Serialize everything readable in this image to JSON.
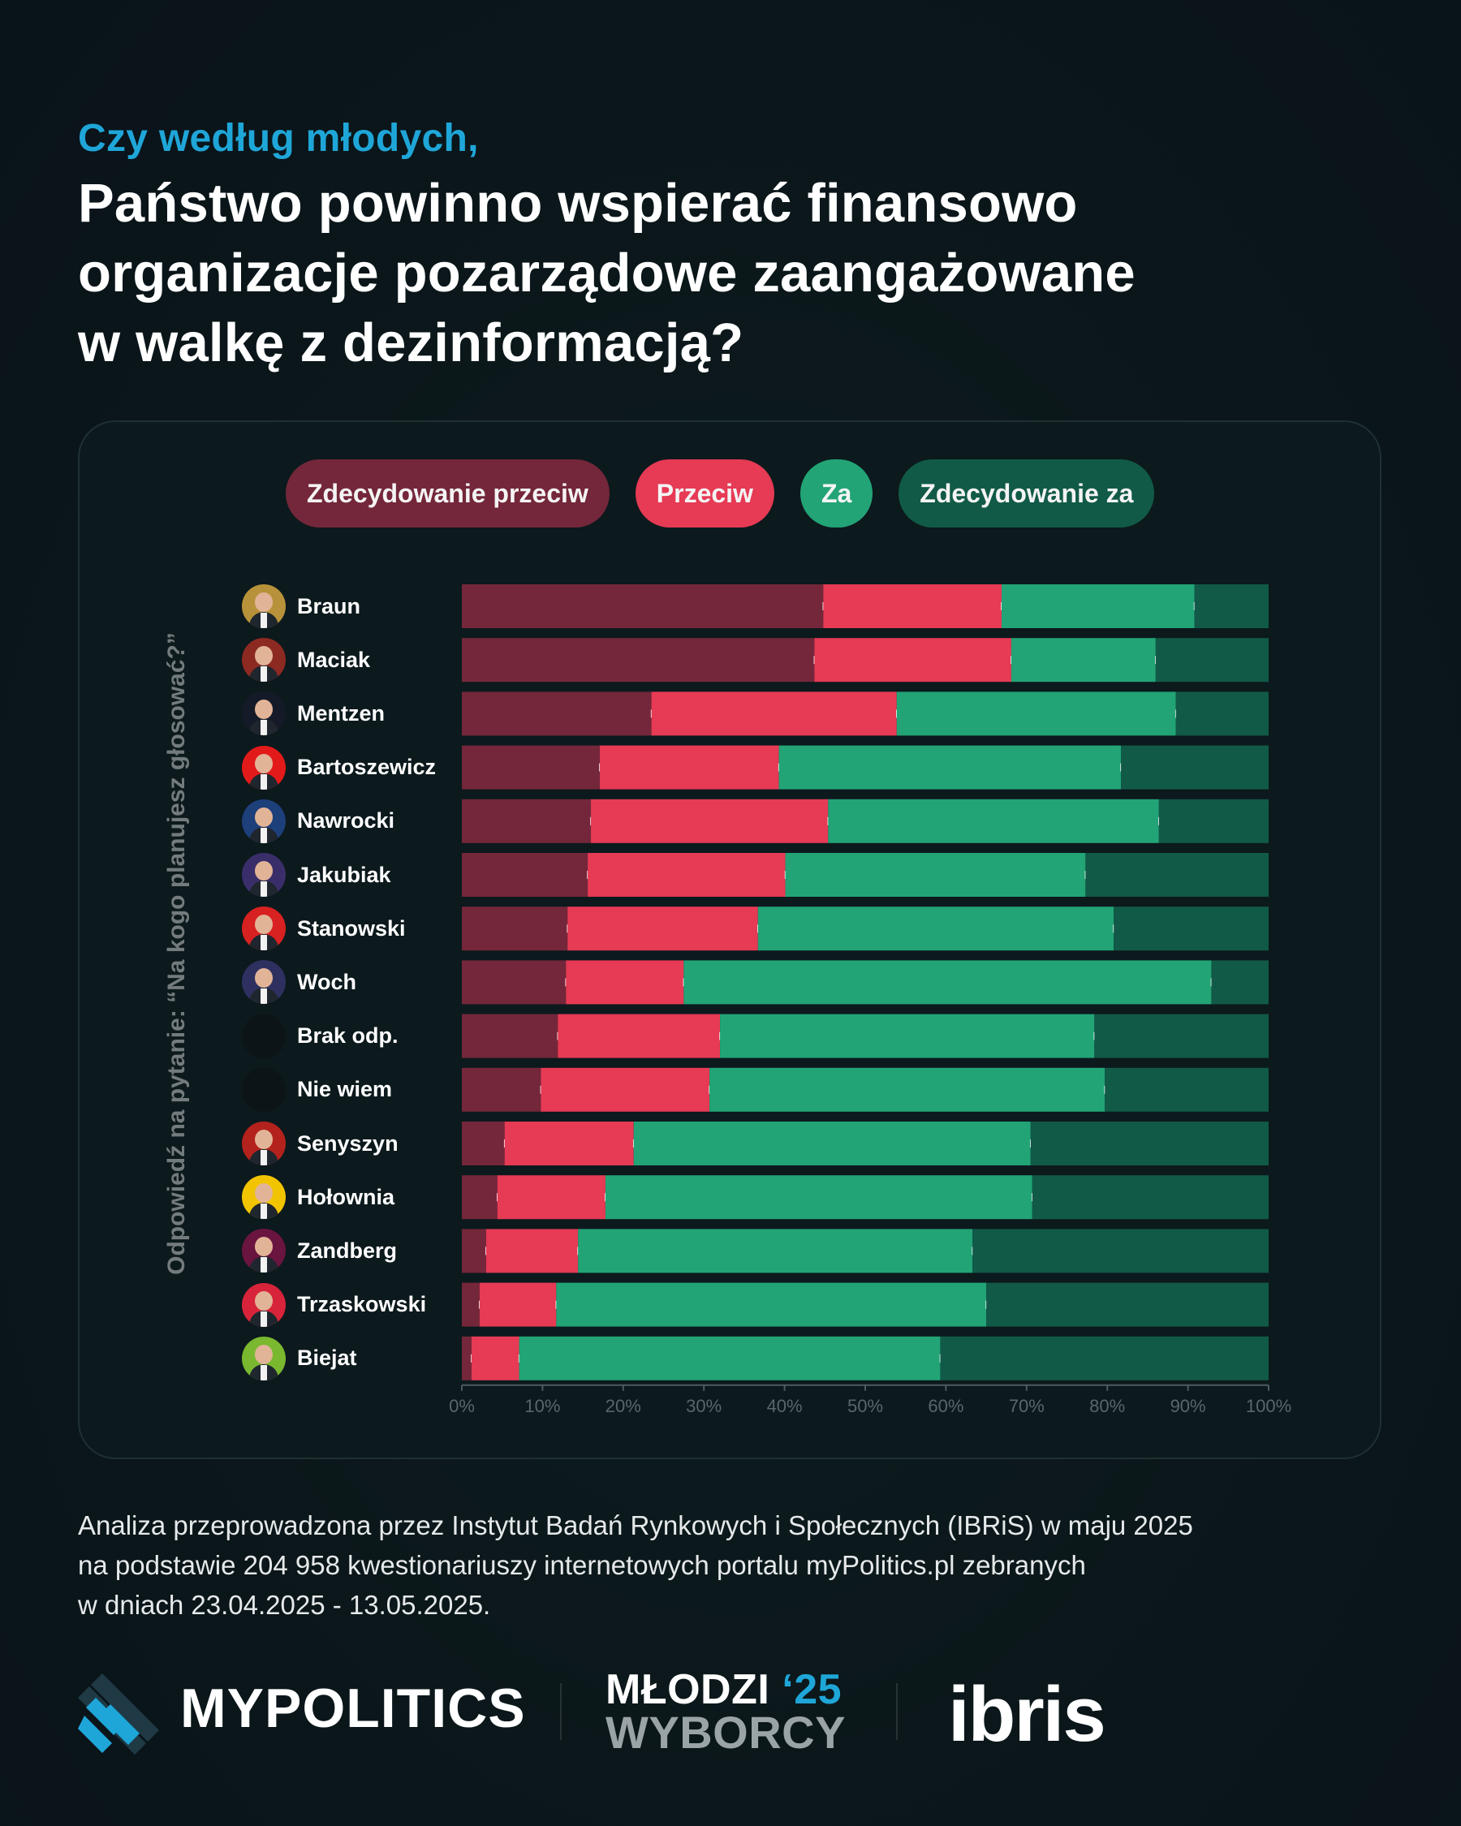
{
  "header": {
    "subtitle": "Czy według młodych,",
    "title_lines": [
      "Państwo powinno wspierać finansowo",
      "organizacje pozarządowe zaangażowane",
      "w walkę z dezinformacją?"
    ]
  },
  "legend": [
    {
      "label": "Zdecydowanie przeciw",
      "color": "#74273a"
    },
    {
      "label": "Przeciw",
      "color": "#e63a55"
    },
    {
      "label": "Za",
      "color": "#22a476"
    },
    {
      "label": "Zdecydowanie za",
      "color": "#115a47"
    }
  ],
  "y_axis_label": "Odpowiedź na pytanie: “Na kogo planujesz głosować?”",
  "chart_data": {
    "type": "bar",
    "orientation": "horizontal",
    "stacked": true,
    "normalized": true,
    "categories": [
      "Braun",
      "Maciak",
      "Mentzen",
      "Bartoszewicz",
      "Nawrocki",
      "Jakubiak",
      "Stanowski",
      "Woch",
      "Brak odp.",
      "Nie wiem",
      "Senyszyn",
      "Hołownia",
      "Zandberg",
      "Trzaskowski",
      "Biejat"
    ],
    "series": [
      {
        "name": "Zdecydowanie przeciw",
        "color": "#74273a",
        "values": [
          44.8,
          43.7,
          23.5,
          17.1,
          16.0,
          15.6,
          13.1,
          12.9,
          11.9,
          9.8,
          5.3,
          4.4,
          3.0,
          2.2,
          1.2
        ]
      },
      {
        "name": "Przeciw",
        "color": "#e63a55",
        "values": [
          22.1,
          24.4,
          30.4,
          22.2,
          29.4,
          24.5,
          23.6,
          14.6,
          20.1,
          20.9,
          16.0,
          13.4,
          11.4,
          9.5,
          5.9
        ]
      },
      {
        "name": "Za",
        "color": "#22a476",
        "values": [
          23.9,
          17.9,
          34.6,
          42.4,
          41.0,
          37.2,
          44.1,
          65.4,
          46.4,
          49.0,
          49.2,
          52.9,
          48.9,
          53.3,
          52.2
        ]
      },
      {
        "name": "Zdecydowanie za",
        "color": "#115a47",
        "values": [
          9.2,
          14.0,
          11.5,
          18.3,
          13.6,
          22.7,
          19.2,
          7.1,
          21.6,
          20.3,
          29.5,
          29.3,
          36.7,
          35.0,
          40.7
        ]
      }
    ],
    "xlim": [
      0,
      100
    ],
    "x_ticks": [
      "0%",
      "10%",
      "20%",
      "30%",
      "40%",
      "50%",
      "60%",
      "70%",
      "80%",
      "90%",
      "100%"
    ],
    "ylabel": "Odpowiedź na pytanie: “Na kogo planujesz głosować?”",
    "legend_position": "top"
  },
  "avatar_colors": [
    {
      "bg": "#b8923a"
    },
    {
      "bg": "#8c2a22"
    },
    {
      "bg": "#151a28"
    },
    {
      "bg": "#e21a1a"
    },
    {
      "bg": "#1d3f7a"
    },
    {
      "bg": "#3a2e6a"
    },
    {
      "bg": "#d82121"
    },
    {
      "bg": "#2e3060"
    },
    {
      "bg": "#0d1418"
    },
    {
      "bg": "#0d1418"
    },
    {
      "bg": "#b3221d"
    },
    {
      "bg": "#f2c400"
    },
    {
      "bg": "#6a1440"
    },
    {
      "bg": "#d8243a"
    },
    {
      "bg": "#7ab830"
    }
  ],
  "footnote_lines": [
    "Analiza przeprowadzona przez Instytut Badań Rynkowych i Społecznych (IBRiS) w maju 2025",
    "na podstawie 204 958 kwestionariuszy internetowych portalu myPolitics.pl zebranych",
    "w dniach 23.04.2025 - 13.05.2025."
  ],
  "footer": {
    "brand1": "MYPOLITICS",
    "brand2_line1": "MŁODZI",
    "brand2_year": "‘25",
    "brand2_line2": "WYBORCY",
    "brand3": "ibris"
  }
}
